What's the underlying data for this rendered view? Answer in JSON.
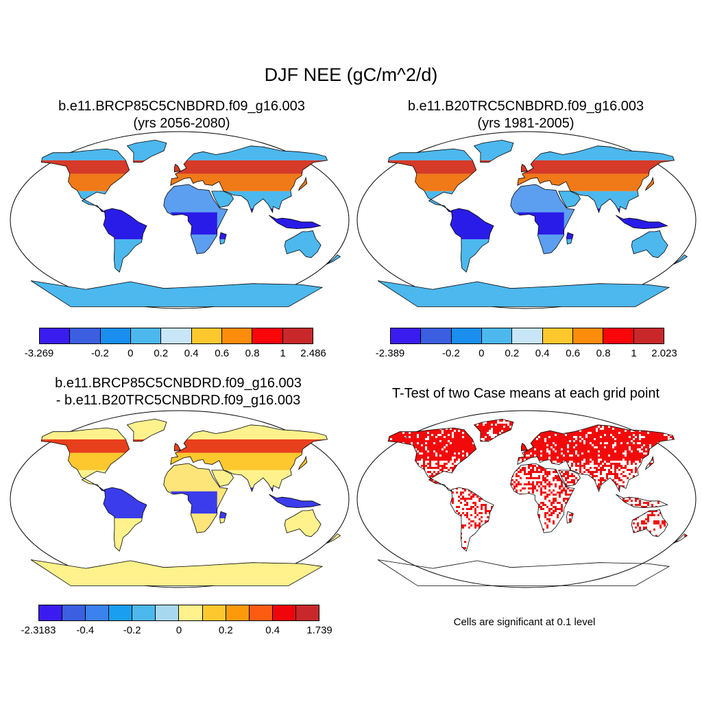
{
  "figure": {
    "title": "DJF NEE (gC/m^2/d)",
    "panels": [
      {
        "title_line1": "b.e11.BRCP85C5CNBDRD.f09_g16.003",
        "title_line2": "(yrs 2056-2080)",
        "colorbar": {
          "colors": [
            "#3b1cf0",
            "#3b5fe0",
            "#1a8ff0",
            "#4cb8ee",
            "#c8e6f8",
            "#fdc82e",
            "#fc8c0c",
            "#f8060a",
            "#c8282a"
          ],
          "labels": [
            "-3.269",
            "-0.2",
            "0",
            "0.2",
            "0.4",
            "0.6",
            "0.8",
            "1",
            "2.486"
          ]
        }
      },
      {
        "title_line1": "b.e11.B20TRC5CNBDRD.f09_g16.003",
        "title_line2": "(yrs 1981-2005)",
        "colorbar": {
          "colors": [
            "#3b1cf0",
            "#3b5fe0",
            "#1a8ff0",
            "#4cb8ee",
            "#c8e6f8",
            "#fdc82e",
            "#fc8c0c",
            "#f8060a",
            "#c8282a"
          ],
          "labels": [
            "-2.389",
            "-0.2",
            "0",
            "0.2",
            "0.4",
            "0.6",
            "0.8",
            "1",
            "2.023"
          ]
        }
      },
      {
        "title_line1": "b.e11.BRCP85C5CNBDRD.f09_g16.003",
        "title_line2": "- b.e11.B20TRC5CNBDRD.f09_g16.003",
        "colorbar": {
          "colors": [
            "#3b1cf0",
            "#3b5fe0",
            "#3b82ee",
            "#1a9ff0",
            "#4cb8ee",
            "#a8d8f0",
            "#fff28c",
            "#fdc82e",
            "#fc9a0c",
            "#fb5c12",
            "#f0060a",
            "#c8282a"
          ],
          "labels": [
            "-2.3183",
            "-0.4",
            "-0.2",
            "0",
            "0.2",
            "0.4",
            "1.739"
          ]
        }
      },
      {
        "title_line1": "T-Test of two Case means at each grid point",
        "note": "Cells are significant at 0.1 level"
      }
    ]
  },
  "maps": {
    "projection": "Robinson",
    "ocean_color": "#ffffff",
    "panel_fills": {
      "p1": {
        "north_high": "#d63a28",
        "north_mid": "#f07a18",
        "tropics": "#2a1ce8",
        "subtropics": "#4cb8ee",
        "africa": "#5c9ff0",
        "australia": "#4cb8ee",
        "antarctica": "#4cb8ee"
      },
      "p2": {
        "north_high": "#d63a28",
        "north_mid": "#f07a18",
        "tropics": "#2a1ce8",
        "subtropics": "#4cb8ee",
        "africa": "#5c9ff0",
        "australia": "#4cb8ee",
        "antarctica": "#4cb8ee"
      },
      "p3": {
        "north_high": "#e8401c",
        "north_mid": "#fdc82e",
        "tropics": "#3b3cec",
        "subtropics": "#fff28c",
        "africa": "#fde57a",
        "australia": "#fff28c",
        "antarctica": "#fff28c"
      },
      "p4": {
        "significant": "#f20a0a",
        "background": "#ffffff"
      }
    }
  }
}
